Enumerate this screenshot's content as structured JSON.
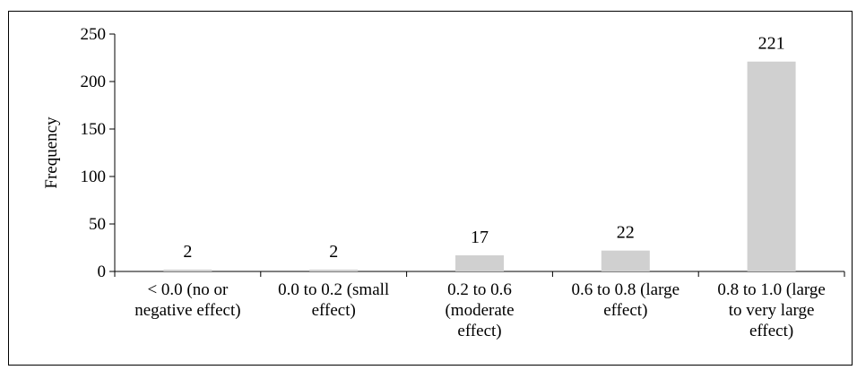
{
  "chart_data": {
    "type": "bar",
    "title": "",
    "xlabel": "",
    "ylabel": "Frequency",
    "ylim": [
      0,
      250
    ],
    "yticks": [
      0,
      50,
      100,
      150,
      200,
      250
    ],
    "grid": false,
    "legend": "none",
    "bar_color": "#d0d0d0",
    "categories": [
      [
        "< 0.0 (no or",
        "negative effect)"
      ],
      [
        "0.0 to 0.2 (small",
        "effect)"
      ],
      [
        "0.2 to 0.6",
        "(moderate",
        "effect)"
      ],
      [
        "0.6 to 0.8 (large",
        "effect)"
      ],
      [
        "0.8 to 1.0 (large",
        "to very large",
        "effect)"
      ]
    ],
    "values": [
      2,
      2,
      17,
      22,
      221
    ]
  }
}
